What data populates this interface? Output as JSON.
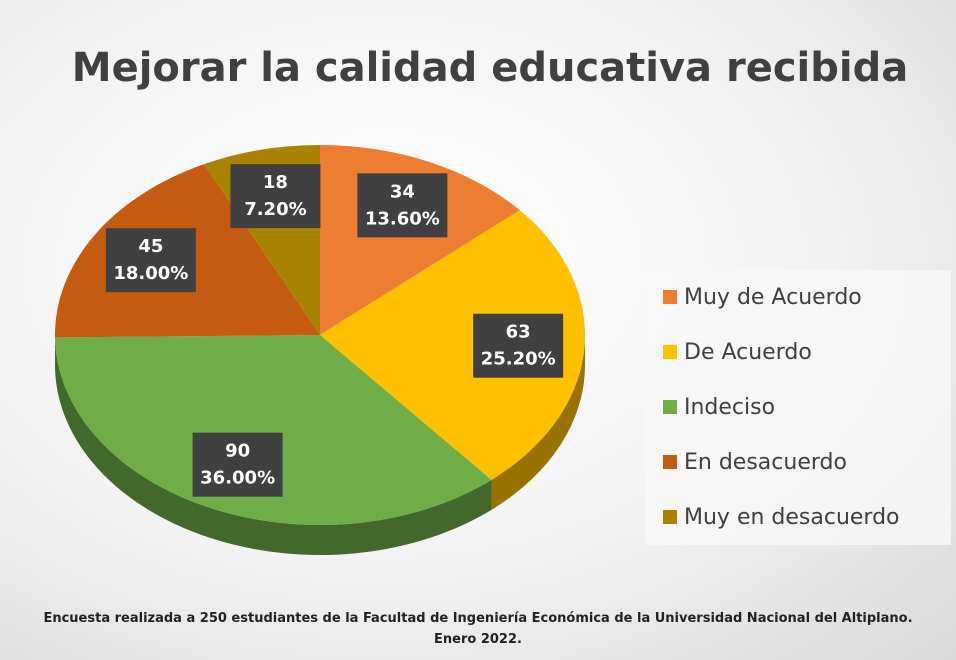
{
  "chart_data": {
    "type": "pie",
    "title": "Mejorar la calidad educativa recibida",
    "categories": [
      "Muy de Acuerdo",
      "De Acuerdo",
      "Indeciso",
      "En desacuerdo",
      "Muy en desacuerdo"
    ],
    "values": [
      34,
      63,
      90,
      45,
      18
    ],
    "percentages": [
      {
        "value": 13.6,
        "label": "13.60%"
      },
      {
        "value": 25.2,
        "label": "25.20%"
      },
      {
        "value": 36,
        "label": "36.00%"
      },
      {
        "value": 18,
        "label": "18.00%"
      },
      {
        "value": 7.2,
        "label": "7.20%"
      }
    ],
    "colors": [
      "#ed7d31",
      "#ffc000",
      "#70ad47",
      "#c55a11",
      "#a88200"
    ],
    "legend": "right",
    "footnote": "Encuesta realizada a 250 estudiantes de la Facultad de Ingeniería Económica de la Universidad Nacional del Altiplano. Enero 2022."
  }
}
